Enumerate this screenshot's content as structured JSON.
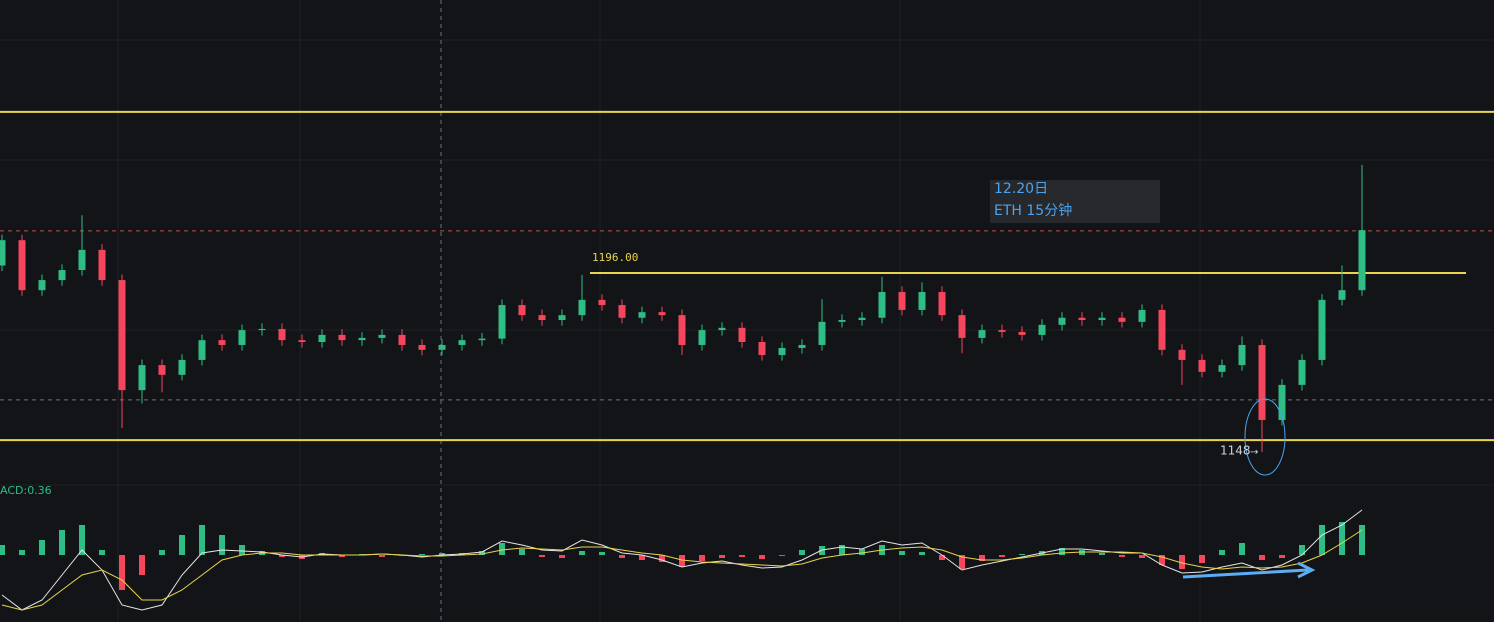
{
  "chart_data": [
    {
      "type": "candlestick",
      "up_color": "#2ebd85",
      "down_color": "#f6465d",
      "ylim": [
        1140.5,
        1269.2
      ],
      "open": [
        1198.0,
        1204.8,
        1191.4,
        1194.1,
        1196.8,
        1202.2,
        1194.1,
        1164.6,
        1171.3,
        1168.7,
        1172.7,
        1178.0,
        1176.7,
        1180.7,
        1181.0,
        1178.0,
        1177.5,
        1179.4,
        1178.0,
        1178.6,
        1179.4,
        1176.7,
        1175.4,
        1176.7,
        1178.0,
        1178.4,
        1187.4,
        1184.7,
        1183.4,
        1184.7,
        1188.8,
        1187.4,
        1184.0,
        1185.5,
        1184.7,
        1176.7,
        1180.7,
        1181.3,
        1177.5,
        1174.0,
        1175.9,
        1176.7,
        1182.9,
        1183.4,
        1184.0,
        1190.9,
        1186.1,
        1190.9,
        1184.7,
        1178.6,
        1180.7,
        1180.2,
        1179.4,
        1182.1,
        1184.0,
        1183.4,
        1184.0,
        1182.9,
        1186.1,
        1175.4,
        1172.7,
        1169.5,
        1171.3,
        1176.7,
        1156.6,
        1166.0,
        1172.7,
        1188.8,
        1191.4
      ],
      "high": [
        1206.3,
        1206.3,
        1195.6,
        1198.3,
        1211.5,
        1203.7,
        1195.6,
        1172.8,
        1172.8,
        1174.2,
        1179.5,
        1179.5,
        1182.2,
        1182.5,
        1182.5,
        1179.5,
        1180.9,
        1180.9,
        1180.1,
        1180.9,
        1180.9,
        1178.2,
        1178.2,
        1179.5,
        1179.9,
        1188.9,
        1188.9,
        1186.2,
        1186.2,
        1195.5,
        1190.3,
        1188.9,
        1187.0,
        1187.0,
        1186.2,
        1182.2,
        1182.8,
        1182.8,
        1179.0,
        1177.4,
        1178.2,
        1189.0,
        1184.9,
        1185.5,
        1195.0,
        1192.4,
        1193.5,
        1192.4,
        1186.2,
        1182.2,
        1182.2,
        1181.7,
        1183.6,
        1185.5,
        1185.5,
        1185.5,
        1185.5,
        1187.6,
        1187.6,
        1176.9,
        1174.2,
        1172.8,
        1179.0,
        1178.2,
        1167.5,
        1174.2,
        1190.3,
        1198.0,
        1225.0
      ],
      "low": [
        1196.5,
        1189.9,
        1189.9,
        1192.6,
        1195.3,
        1192.6,
        1154.4,
        1161.0,
        1164.0,
        1167.2,
        1171.2,
        1175.2,
        1175.2,
        1179.2,
        1176.5,
        1176.0,
        1176.0,
        1176.5,
        1176.5,
        1177.1,
        1175.2,
        1173.9,
        1173.9,
        1175.2,
        1176.5,
        1176.9,
        1183.2,
        1181.9,
        1181.9,
        1183.2,
        1185.9,
        1182.5,
        1182.5,
        1183.2,
        1174.0,
        1175.2,
        1179.2,
        1176.0,
        1172.5,
        1172.5,
        1174.4,
        1175.2,
        1181.4,
        1181.9,
        1182.5,
        1184.6,
        1184.6,
        1183.2,
        1174.5,
        1177.1,
        1178.7,
        1177.9,
        1177.9,
        1180.6,
        1181.9,
        1181.9,
        1181.4,
        1181.4,
        1173.9,
        1166.0,
        1168.0,
        1168.0,
        1169.8,
        1148.0,
        1155.1,
        1164.5,
        1171.2,
        1187.3,
        1189.9
      ],
      "close": [
        1204.8,
        1191.4,
        1194.1,
        1196.8,
        1202.2,
        1194.1,
        1164.6,
        1171.3,
        1168.7,
        1172.7,
        1178.0,
        1176.7,
        1180.7,
        1181.0,
        1178.0,
        1177.5,
        1179.4,
        1178.0,
        1178.6,
        1179.4,
        1176.7,
        1175.4,
        1176.7,
        1178.0,
        1178.4,
        1187.4,
        1184.7,
        1183.4,
        1184.7,
        1188.8,
        1187.4,
        1184.0,
        1185.5,
        1184.7,
        1176.7,
        1180.7,
        1181.3,
        1177.5,
        1174.0,
        1175.9,
        1176.7,
        1182.9,
        1183.4,
        1184.0,
        1190.9,
        1186.1,
        1190.9,
        1184.7,
        1178.6,
        1180.7,
        1180.2,
        1179.4,
        1182.1,
        1184.0,
        1183.4,
        1184.0,
        1182.9,
        1186.1,
        1175.4,
        1172.7,
        1169.5,
        1171.3,
        1176.7,
        1156.6,
        1166.0,
        1172.7,
        1188.8,
        1191.4,
        1207.5
      ],
      "levels": [
        {
          "value": 1239.2,
          "color": "#e8d44d",
          "style": "solid"
        },
        {
          "value": 1207.3,
          "color": "#c0504d",
          "style": "dashed"
        },
        {
          "value": 1196,
          "label": "1196.00",
          "color": "#e8d44d",
          "style": "solid"
        },
        {
          "value": 1162,
          "color": "#6b6f78",
          "style": "dashed"
        },
        {
          "value": 1151.2,
          "color": "#e8d44d",
          "style": "solid"
        }
      ],
      "annotations": [
        "12.20日",
        "ETH 15分钟",
        "1148"
      ]
    },
    {
      "type": "macd",
      "title": "ACD:0.36",
      "ylim": [
        -0.67,
        0.7
      ],
      "hist": [
        0.1,
        0.05,
        0.15,
        0.25,
        0.3,
        0.05,
        -0.35,
        -0.2,
        0.05,
        0.2,
        0.3,
        0.2,
        0.1,
        0.04,
        -0.02,
        -0.04,
        0.02,
        -0.02,
        0.01,
        -0.02,
        -0.01,
        0.01,
        0.02,
        0.02,
        0.04,
        0.12,
        0.06,
        -0.02,
        -0.03,
        0.04,
        0.03,
        -0.03,
        -0.05,
        -0.07,
        -0.12,
        -0.06,
        -0.03,
        -0.02,
        -0.04,
        -0.01,
        0.05,
        0.09,
        0.1,
        0.06,
        0.1,
        0.04,
        0.03,
        -0.05,
        -0.14,
        -0.06,
        -0.02,
        0.01,
        0.04,
        0.07,
        0.05,
        0.02,
        -0.02,
        -0.03,
        -0.1,
        -0.14,
        -0.08,
        0.05,
        0.12,
        -0.05,
        -0.03,
        0.1,
        0.3,
        0.33,
        0.3
      ],
      "series": [
        {
          "color": "#e6e6e6",
          "values": [
            -0.4,
            -0.55,
            -0.45,
            -0.2,
            0.05,
            -0.15,
            -0.5,
            -0.55,
            -0.5,
            -0.2,
            0.02,
            0.05,
            0.04,
            0.03,
            0.0,
            -0.02,
            0.01,
            0.0,
            0.0,
            0.01,
            0.0,
            -0.02,
            0.0,
            0.01,
            0.03,
            0.14,
            0.1,
            0.05,
            0.04,
            0.15,
            0.1,
            0.02,
            0.0,
            -0.05,
            -0.12,
            -0.08,
            -0.06,
            -0.1,
            -0.13,
            -0.12,
            -0.05,
            0.05,
            0.08,
            0.06,
            0.14,
            0.1,
            0.12,
            0.0,
            -0.15,
            -0.1,
            -0.06,
            -0.02,
            0.02,
            0.06,
            0.06,
            0.04,
            0.02,
            0.02,
            -0.1,
            -0.18,
            -0.17,
            -0.12,
            -0.08,
            -0.15,
            -0.1,
            0.0,
            0.2,
            0.3,
            0.45
          ]
        },
        {
          "color": "#e8d44d",
          "values": [
            -0.5,
            -0.55,
            -0.5,
            -0.35,
            -0.2,
            -0.15,
            -0.25,
            -0.45,
            -0.45,
            -0.35,
            -0.2,
            -0.05,
            0.0,
            0.02,
            0.02,
            0.0,
            0.0,
            0.0,
            0.0,
            0.01,
            0.0,
            -0.01,
            -0.01,
            0.0,
            0.01,
            0.05,
            0.07,
            0.06,
            0.05,
            0.08,
            0.08,
            0.05,
            0.02,
            0.0,
            -0.05,
            -0.07,
            -0.08,
            -0.09,
            -0.1,
            -0.11,
            -0.09,
            -0.03,
            0.0,
            0.02,
            0.05,
            0.07,
            0.08,
            0.05,
            -0.02,
            -0.05,
            -0.05,
            -0.03,
            0.0,
            0.02,
            0.03,
            0.03,
            0.03,
            0.02,
            -0.02,
            -0.08,
            -0.12,
            -0.14,
            -0.12,
            -0.13,
            -0.12,
            -0.08,
            0.0,
            0.12,
            0.25
          ]
        }
      ]
    }
  ]
}
